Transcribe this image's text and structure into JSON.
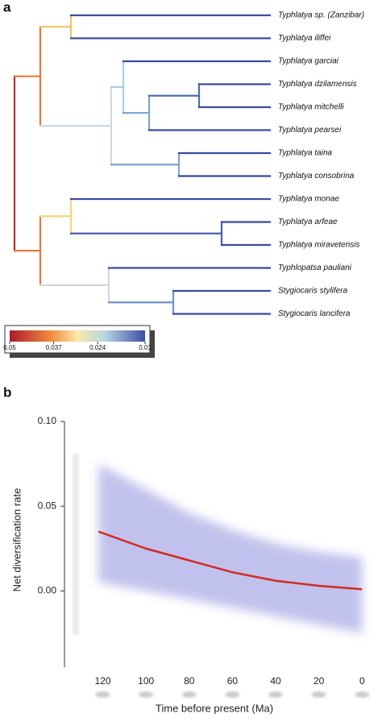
{
  "panel_a": {
    "label": "a",
    "taxa": [
      "Typhlatya sp. (Zanzibar)",
      "Typhlatya iliffei",
      "Typhlatya garciai",
      "Typhlatya dzilamensis",
      "Typhlatya mitchelli",
      "Typhlatya pearsei",
      "Typhlatya taina",
      "Typhlatya consobrina",
      "Typhlatya monae",
      "Typhlatya arfeae",
      "Typhlatya miravetensis",
      "Typhlopatsa pauliani",
      "Stygiocaris stylifera",
      "Stygiocaris lancifera"
    ],
    "colorbar": {
      "lim": [
        0.05,
        0.01
      ],
      "ticks": [
        0.05,
        0.037,
        0.024,
        0.01
      ]
    }
  },
  "panel_b": {
    "label": "b"
  },
  "chart_data": {
    "type": "line",
    "ylabel": "Net diversification rate",
    "xlabel": "Time before present (Ma)",
    "x": [
      122,
      100,
      80,
      60,
      40,
      20,
      0
    ],
    "series": [
      {
        "color": "#d42a22",
        "values": [
          0.035,
          0.025,
          0.018,
          0.011,
          0.006,
          0.003,
          0.001
        ]
      }
    ],
    "band": {
      "color": "#7878d8",
      "upper": [
        0.075,
        0.06,
        0.046,
        0.036,
        0.028,
        0.023,
        0.02
      ],
      "lower": [
        0.005,
        0.0,
        -0.005,
        -0.01,
        -0.015,
        -0.02,
        -0.025
      ]
    },
    "xlim": [
      134,
      -1
    ],
    "ylim": [
      -0.045,
      0.1
    ],
    "xticks": [
      120,
      100,
      80,
      60,
      40,
      20,
      0
    ],
    "yticks": [
      {
        "value": 0,
        "label": "0.00"
      },
      {
        "value": 0.05,
        "label": "0.05"
      },
      {
        "value": 0.1,
        "label": "0.10"
      }
    ]
  }
}
